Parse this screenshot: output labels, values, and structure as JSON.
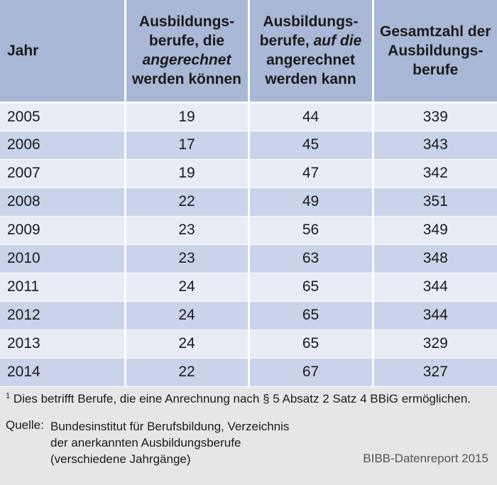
{
  "table": {
    "headers": {
      "col0": "Jahr",
      "col1_a": "Ausbildungs-",
      "col1_b": "berufe, die",
      "col1_c": "angerechnet",
      "col1_d": "werden können",
      "col2_a": "Ausbildungs-",
      "col2_b": "berufe,",
      "col2_c": "auf die",
      "col2_d": "angerechnet",
      "col2_e": "werden kann",
      "col3_a": "Gesamtzahl der",
      "col3_b": "Ausbildungs-",
      "col3_c": "berufe"
    },
    "rows": [
      {
        "year": "2005",
        "a": "19",
        "b": "44",
        "c": "339"
      },
      {
        "year": "2006",
        "a": "17",
        "b": "45",
        "c": "343"
      },
      {
        "year": "2007",
        "a": "19",
        "b": "47",
        "c": "342"
      },
      {
        "year": "2008",
        "a": "22",
        "b": "49",
        "c": "351"
      },
      {
        "year": "2009",
        "a": "23",
        "b": "56",
        "c": "349"
      },
      {
        "year": "2010",
        "a": "23",
        "b": "63",
        "c": "348"
      },
      {
        "year": "2011",
        "a": "24",
        "b": "65",
        "c": "344"
      },
      {
        "year": "2012",
        "a": "24",
        "b": "65",
        "c": "344"
      },
      {
        "year": "2013",
        "a": "24",
        "b": "65",
        "c": "329"
      },
      {
        "year": "2014",
        "a": "22",
        "b": "67",
        "c": "327"
      }
    ]
  },
  "footer": {
    "footnote_mark": "1",
    "footnote_text": " Dies betrifft Berufe, die eine Anrechnung nach § 5 Absatz 2 Satz 4 BBiG ermöglichen.",
    "source_label": "Quelle:",
    "source_lines": [
      "Bundesinstitut für Berufsbildung, Verzeichnis",
      "der anerkannten Ausbildungsberufe",
      "(verschiedene Jahrgänge)"
    ],
    "credit": "BIBB-Datenreport 2015"
  },
  "colors": {
    "header_bg": "#a9b8d6",
    "row_light": "#e7ecf5",
    "row_dark": "#c9d4ea",
    "footer_bg": "#e6e6e6"
  }
}
